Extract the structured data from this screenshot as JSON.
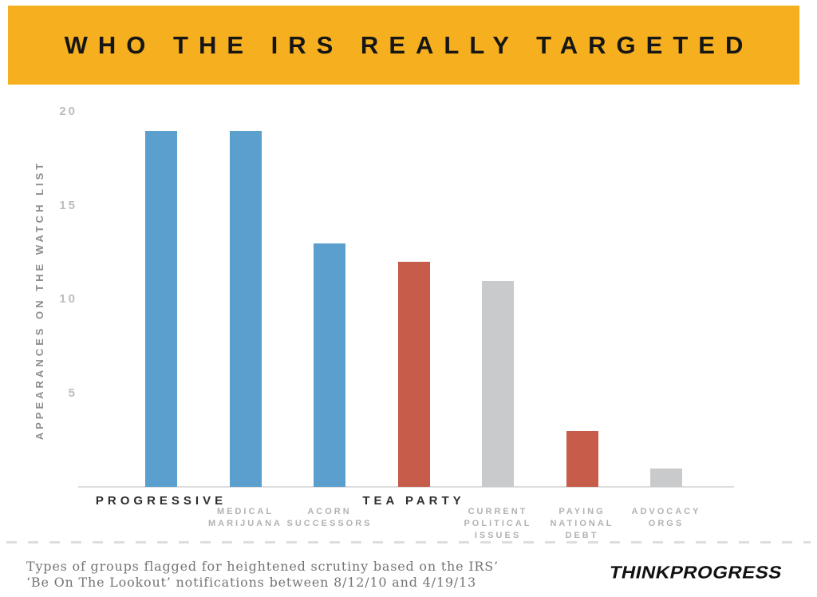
{
  "header": {
    "title": "WHO THE IRS REALLY TARGETED",
    "banner_color": "#F6B01F"
  },
  "chart_data": {
    "type": "bar",
    "title": "WHO THE IRS REALLY TARGETED",
    "ylabel": "APPEARANCES ON THE WATCH LIST",
    "xlabel": "",
    "categories": [
      "PROGRESSIVE",
      "MEDICAL MARIJUANA",
      "ACORN SUCCESSORS",
      "TEA PARTY",
      "CURRENT POLITICAL ISSUES",
      "PAYING NATIONAL DEBT",
      "ADVOCACY ORGS"
    ],
    "label_lines": [
      [
        "PROGRESSIVE"
      ],
      [
        "MEDICAL",
        "MARIJUANA"
      ],
      [
        "ACORN",
        "SUCCESSORS"
      ],
      [
        "TEA PARTY"
      ],
      [
        "CURRENT",
        "POLITICAL",
        "ISSUES"
      ],
      [
        "PAYING",
        "NATIONAL",
        "DEBT"
      ],
      [
        "ADVOCACY",
        "ORGS"
      ]
    ],
    "emphasized_labels": [
      true,
      false,
      false,
      true,
      false,
      false,
      false
    ],
    "values": [
      19,
      19,
      13,
      12,
      11,
      3,
      1
    ],
    "bar_colors": [
      "#5B9FCF",
      "#5B9FCF",
      "#5B9FCF",
      "#C85C4B",
      "#C9CACC",
      "#C85C4B",
      "#C9CACC"
    ],
    "series_colors": {
      "progressive_blue": "#5B9FCF",
      "tea_party_red": "#C85C4B",
      "neutral_gray": "#C9CACC"
    },
    "yticks": [
      20,
      15,
      10,
      5
    ],
    "ylim": [
      0,
      20
    ],
    "grid": false,
    "legend": "none"
  },
  "footer": {
    "caption_line1": "Types of groups flagged for heightened scrutiny based on the IRS’",
    "caption_line2": "‘Be On The Lookout’ notifications between 8/12/10 and 4/19/13",
    "logo": "THINKPROGRESS"
  }
}
